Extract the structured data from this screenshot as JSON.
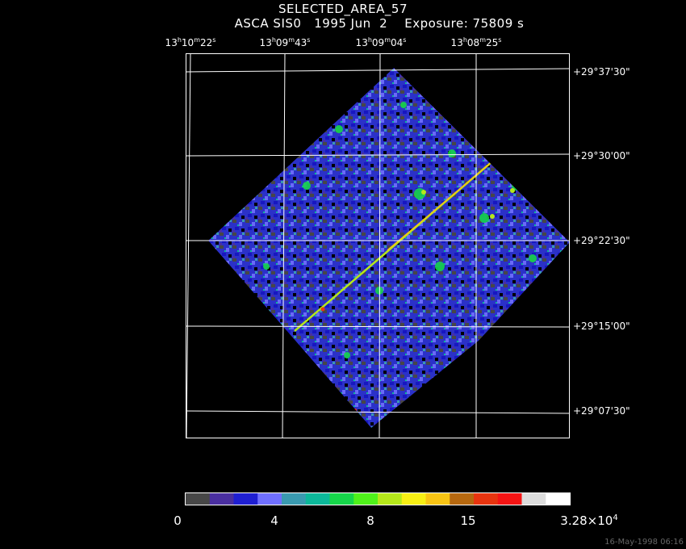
{
  "title": "SELECTED_AREA_57",
  "subtitle": "ASCA SIS0   1995 Jun  2    Exposure: 75809 s",
  "ra_ticks": [
    {
      "h": "13",
      "m": "10",
      "s": "22"
    },
    {
      "h": "13",
      "m": "09",
      "s": "43"
    },
    {
      "h": "13",
      "m": "09",
      "s": "04"
    },
    {
      "h": "13",
      "m": "08",
      "s": "25"
    }
  ],
  "dec_ticks": [
    "+29°37'30\"",
    "+29°30'00\"",
    "+29°22'30\"",
    "+29°15'00\"",
    "+29°07'30\""
  ],
  "colorbar": {
    "colors": [
      "#474747",
      "#4a2fa0",
      "#1f1fd2",
      "#7070ff",
      "#3a9ab0",
      "#0cb89a",
      "#16d64a",
      "#4ff21a",
      "#b5e81a",
      "#f7ef14",
      "#f8c414",
      "#b6680f",
      "#e8340f",
      "#f51414",
      "#dcdcdc",
      "#ffffff"
    ],
    "labels": [
      "0",
      "4",
      "8",
      "15"
    ],
    "max_label_base": "3.28×10",
    "max_label_exp": "4"
  },
  "timestamp": "16-May-1998 06:16"
}
